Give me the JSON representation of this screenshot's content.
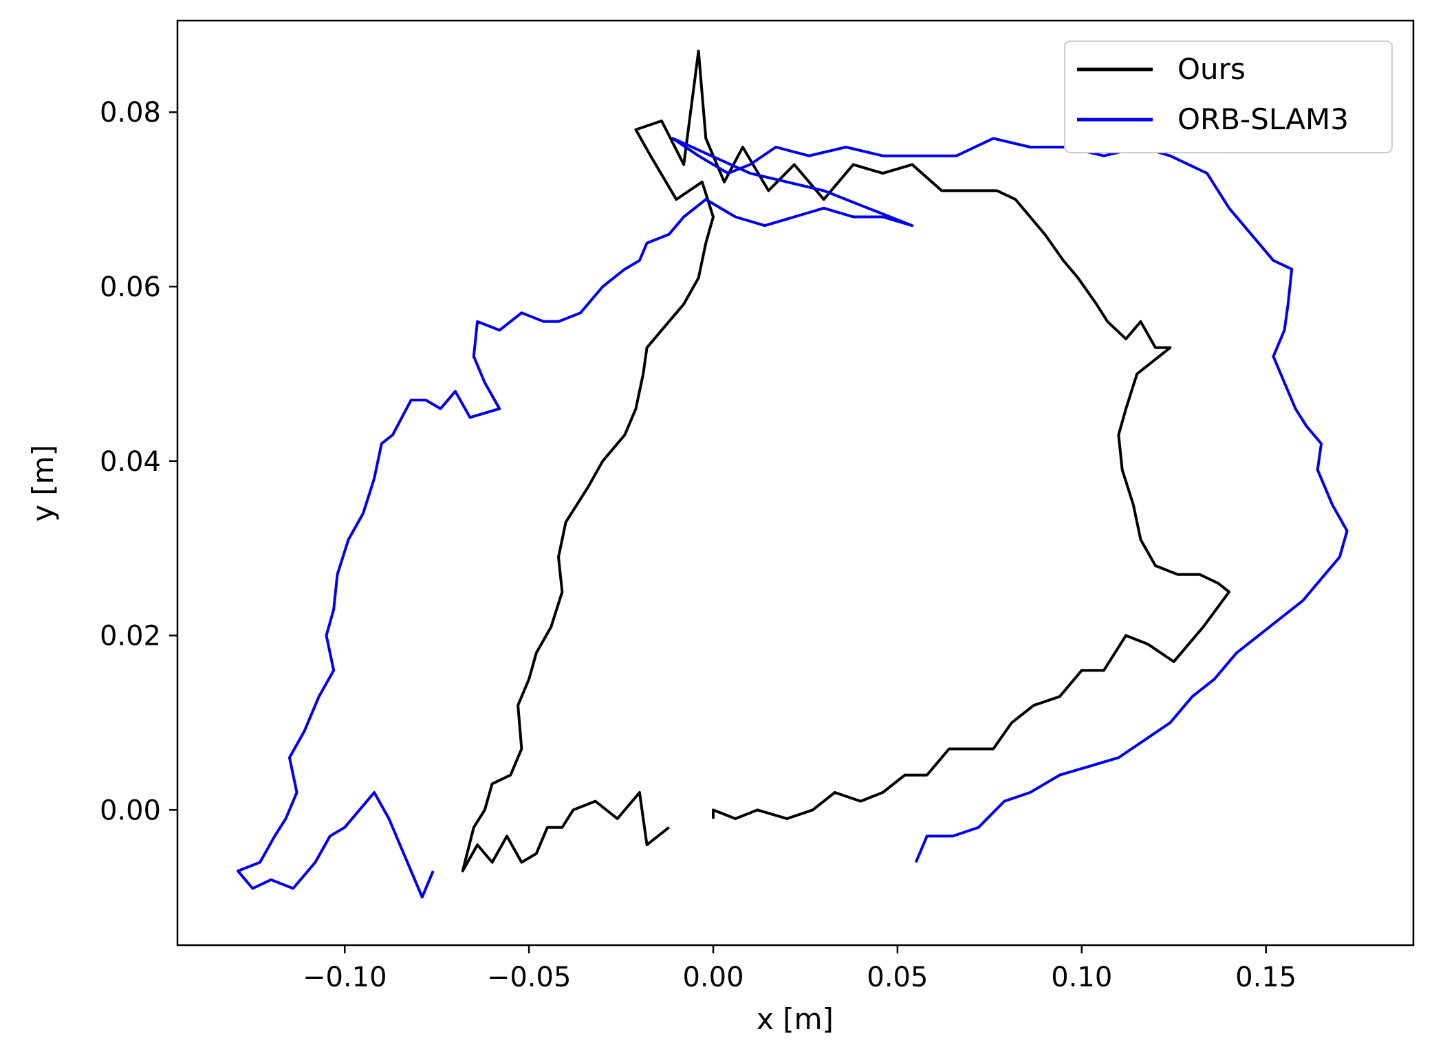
{
  "chart_data": {
    "type": "line",
    "xlabel": "x [m]",
    "ylabel": "y [m]",
    "xlim": [
      -0.1454,
      0.19
    ],
    "ylim": [
      -0.0155,
      0.0905
    ],
    "xticks": [
      -0.1,
      -0.05,
      0.0,
      0.05,
      0.1,
      0.15
    ],
    "xtick_labels": [
      "−0.10",
      "−0.05",
      "0.00",
      "0.05",
      "0.10",
      "0.15"
    ],
    "yticks": [
      0.0,
      0.02,
      0.04,
      0.06,
      0.08
    ],
    "ytick_labels": [
      "0.00",
      "0.02",
      "0.04",
      "0.06",
      "0.08"
    ],
    "grid": false,
    "legend_position": "top-right",
    "series": [
      {
        "name": "Ours",
        "color": "#000000",
        "points": [
          [
            -0.012,
            -0.002
          ],
          [
            -0.018,
            -0.004
          ],
          [
            -0.02,
            0.002
          ],
          [
            -0.026,
            -0.001
          ],
          [
            -0.032,
            0.001
          ],
          [
            -0.038,
            0.0
          ],
          [
            -0.041,
            -0.002
          ],
          [
            -0.045,
            -0.002
          ],
          [
            -0.048,
            -0.005
          ],
          [
            -0.052,
            -0.006
          ],
          [
            -0.056,
            -0.003
          ],
          [
            -0.06,
            -0.006
          ],
          [
            -0.064,
            -0.004
          ],
          [
            -0.068,
            -0.007
          ],
          [
            -0.065,
            -0.002
          ],
          [
            -0.062,
            0.0
          ],
          [
            -0.06,
            0.003
          ],
          [
            -0.055,
            0.004
          ],
          [
            -0.052,
            0.007
          ],
          [
            -0.053,
            0.012
          ],
          [
            -0.05,
            0.015
          ],
          [
            -0.048,
            0.018
          ],
          [
            -0.044,
            0.021
          ],
          [
            -0.041,
            0.025
          ],
          [
            -0.042,
            0.029
          ],
          [
            -0.04,
            0.033
          ],
          [
            -0.034,
            0.037
          ],
          [
            -0.03,
            0.04
          ],
          [
            -0.024,
            0.043
          ],
          [
            -0.021,
            0.046
          ],
          [
            -0.019,
            0.05
          ],
          [
            -0.018,
            0.053
          ],
          [
            -0.014,
            0.055
          ],
          [
            -0.008,
            0.058
          ],
          [
            -0.004,
            0.061
          ],
          [
            -0.002,
            0.065
          ],
          [
            0.0,
            0.068
          ],
          [
            -0.003,
            0.072
          ],
          [
            -0.01,
            0.07
          ],
          [
            -0.017,
            0.075
          ],
          [
            -0.021,
            0.078
          ],
          [
            -0.014,
            0.079
          ],
          [
            -0.008,
            0.074
          ],
          [
            -0.004,
            0.087
          ],
          [
            -0.002,
            0.077
          ],
          [
            0.003,
            0.072
          ],
          [
            0.008,
            0.076
          ],
          [
            0.015,
            0.071
          ],
          [
            0.022,
            0.074
          ],
          [
            0.03,
            0.07
          ],
          [
            0.038,
            0.074
          ],
          [
            0.046,
            0.073
          ],
          [
            0.054,
            0.074
          ],
          [
            0.062,
            0.071
          ],
          [
            0.07,
            0.071
          ],
          [
            0.077,
            0.071
          ],
          [
            0.082,
            0.07
          ],
          [
            0.086,
            0.068
          ],
          [
            0.09,
            0.066
          ],
          [
            0.095,
            0.063
          ],
          [
            0.099,
            0.061
          ],
          [
            0.104,
            0.058
          ],
          [
            0.107,
            0.056
          ],
          [
            0.112,
            0.054
          ],
          [
            0.116,
            0.056
          ],
          [
            0.12,
            0.053
          ],
          [
            0.124,
            0.053
          ],
          [
            0.115,
            0.05
          ],
          [
            0.112,
            0.046
          ],
          [
            0.11,
            0.043
          ],
          [
            0.111,
            0.039
          ],
          [
            0.114,
            0.035
          ],
          [
            0.116,
            0.031
          ],
          [
            0.12,
            0.028
          ],
          [
            0.126,
            0.027
          ],
          [
            0.132,
            0.027
          ],
          [
            0.137,
            0.026
          ],
          [
            0.14,
            0.025
          ],
          [
            0.133,
            0.021
          ],
          [
            0.125,
            0.017
          ],
          [
            0.118,
            0.019
          ],
          [
            0.112,
            0.02
          ],
          [
            0.106,
            0.016
          ],
          [
            0.1,
            0.016
          ],
          [
            0.094,
            0.013
          ],
          [
            0.087,
            0.012
          ],
          [
            0.081,
            0.01
          ],
          [
            0.076,
            0.007
          ],
          [
            0.07,
            0.007
          ],
          [
            0.064,
            0.007
          ],
          [
            0.058,
            0.004
          ],
          [
            0.052,
            0.004
          ],
          [
            0.046,
            0.002
          ],
          [
            0.04,
            0.001
          ],
          [
            0.033,
            0.002
          ],
          [
            0.027,
            0.0
          ],
          [
            0.02,
            -0.001
          ],
          [
            0.012,
            0.0
          ],
          [
            0.006,
            -0.001
          ],
          [
            0.0,
            0.0
          ],
          [
            0.0,
            -0.001
          ]
        ]
      },
      {
        "name": "ORB-SLAM3",
        "color": "#0000ee",
        "points": [
          [
            0.055,
            -0.006
          ],
          [
            0.058,
            -0.003
          ],
          [
            0.065,
            -0.003
          ],
          [
            0.072,
            -0.002
          ],
          [
            0.079,
            0.001
          ],
          [
            0.086,
            0.002
          ],
          [
            0.094,
            0.004
          ],
          [
            0.102,
            0.005
          ],
          [
            0.11,
            0.006
          ],
          [
            0.117,
            0.008
          ],
          [
            0.124,
            0.01
          ],
          [
            0.13,
            0.013
          ],
          [
            0.136,
            0.015
          ],
          [
            0.142,
            0.018
          ],
          [
            0.148,
            0.02
          ],
          [
            0.154,
            0.022
          ],
          [
            0.16,
            0.024
          ],
          [
            0.166,
            0.027
          ],
          [
            0.17,
            0.029
          ],
          [
            0.172,
            0.032
          ],
          [
            0.168,
            0.035
          ],
          [
            0.164,
            0.039
          ],
          [
            0.165,
            0.042
          ],
          [
            0.161,
            0.044
          ],
          [
            0.158,
            0.046
          ],
          [
            0.155,
            0.049
          ],
          [
            0.152,
            0.052
          ],
          [
            0.155,
            0.055
          ],
          [
            0.156,
            0.058
          ],
          [
            0.157,
            0.062
          ],
          [
            0.152,
            0.063
          ],
          [
            0.146,
            0.066
          ],
          [
            0.14,
            0.069
          ],
          [
            0.134,
            0.073
          ],
          [
            0.124,
            0.075
          ],
          [
            0.116,
            0.076
          ],
          [
            0.106,
            0.075
          ],
          [
            0.096,
            0.076
          ],
          [
            0.086,
            0.076
          ],
          [
            0.076,
            0.077
          ],
          [
            0.066,
            0.075
          ],
          [
            0.056,
            0.075
          ],
          [
            0.046,
            0.075
          ],
          [
            0.036,
            0.076
          ],
          [
            0.026,
            0.075
          ],
          [
            0.017,
            0.076
          ],
          [
            0.01,
            0.074
          ],
          [
            0.004,
            0.073
          ],
          [
            -0.004,
            0.075
          ],
          [
            -0.011,
            0.077
          ],
          [
            0.01,
            0.073
          ],
          [
            0.03,
            0.071
          ],
          [
            0.054,
            0.067
          ],
          [
            0.046,
            0.068
          ],
          [
            0.038,
            0.068
          ],
          [
            0.03,
            0.069
          ],
          [
            0.022,
            0.068
          ],
          [
            0.014,
            0.067
          ],
          [
            0.006,
            0.068
          ],
          [
            -0.002,
            0.07
          ],
          [
            -0.008,
            0.068
          ],
          [
            -0.012,
            0.066
          ],
          [
            -0.018,
            0.065
          ],
          [
            -0.02,
            0.063
          ],
          [
            -0.024,
            0.062
          ],
          [
            -0.03,
            0.06
          ],
          [
            -0.036,
            0.057
          ],
          [
            -0.042,
            0.056
          ],
          [
            -0.046,
            0.056
          ],
          [
            -0.052,
            0.057
          ],
          [
            -0.058,
            0.055
          ],
          [
            -0.064,
            0.056
          ],
          [
            -0.065,
            0.052
          ],
          [
            -0.062,
            0.049
          ],
          [
            -0.058,
            0.046
          ],
          [
            -0.066,
            0.045
          ],
          [
            -0.07,
            0.048
          ],
          [
            -0.074,
            0.046
          ],
          [
            -0.078,
            0.047
          ],
          [
            -0.082,
            0.047
          ],
          [
            -0.087,
            0.043
          ],
          [
            -0.09,
            0.042
          ],
          [
            -0.092,
            0.038
          ],
          [
            -0.095,
            0.034
          ],
          [
            -0.099,
            0.031
          ],
          [
            -0.102,
            0.027
          ],
          [
            -0.103,
            0.023
          ],
          [
            -0.105,
            0.02
          ],
          [
            -0.103,
            0.016
          ],
          [
            -0.107,
            0.013
          ],
          [
            -0.111,
            0.009
          ],
          [
            -0.115,
            0.006
          ],
          [
            -0.113,
            0.002
          ],
          [
            -0.116,
            -0.001
          ],
          [
            -0.119,
            -0.003
          ],
          [
            -0.123,
            -0.006
          ],
          [
            -0.129,
            -0.007
          ],
          [
            -0.125,
            -0.009
          ],
          [
            -0.12,
            -0.008
          ],
          [
            -0.114,
            -0.009
          ],
          [
            -0.108,
            -0.006
          ],
          [
            -0.104,
            -0.003
          ],
          [
            -0.1,
            -0.002
          ],
          [
            -0.096,
            0.0
          ],
          [
            -0.092,
            0.002
          ],
          [
            -0.088,
            -0.001
          ],
          [
            -0.085,
            -0.004
          ],
          [
            -0.082,
            -0.007
          ],
          [
            -0.079,
            -0.01
          ],
          [
            -0.076,
            -0.007
          ]
        ]
      }
    ]
  }
}
